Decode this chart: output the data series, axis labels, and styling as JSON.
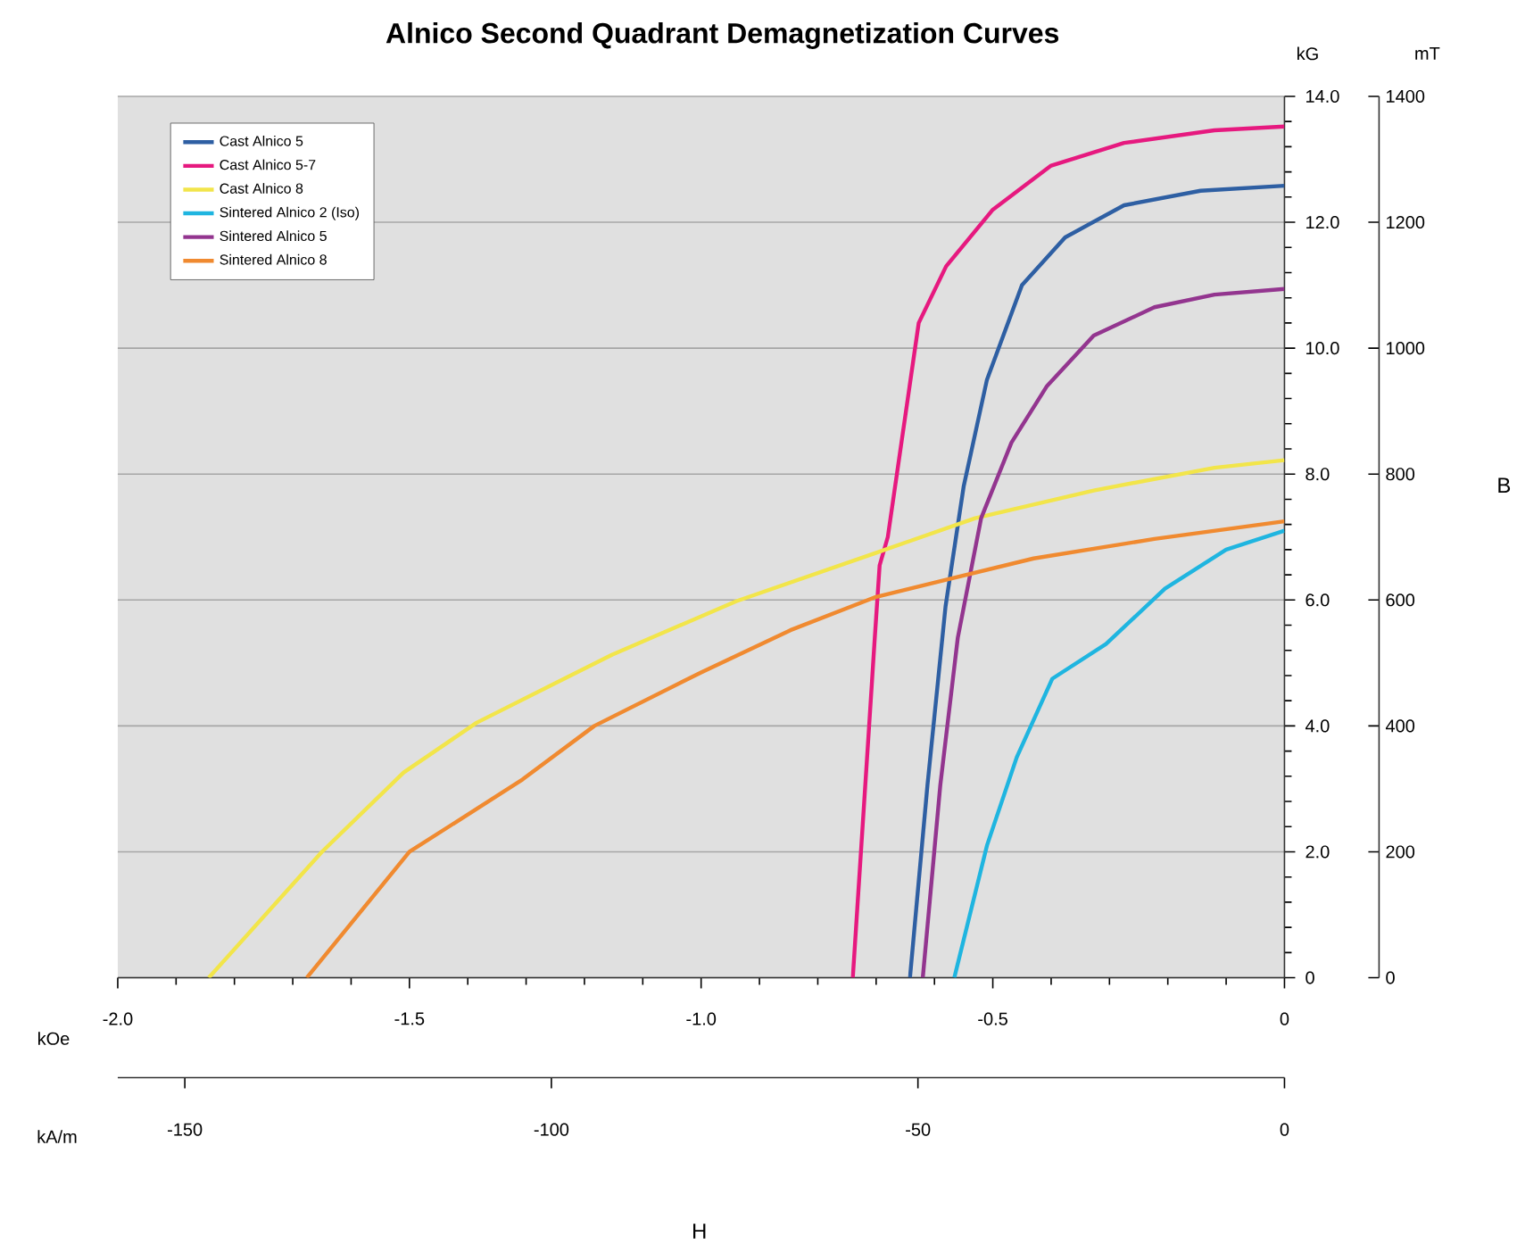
{
  "chart_data": {
    "type": "line",
    "title": "Alnico Second Quadrant Demagnetization Curves",
    "xlabel": "kOe",
    "x2label": "kA/m",
    "ylabel": "kG",
    "y2label": "mT",
    "annotations": [
      "B",
      "H"
    ],
    "xlim": [
      -2,
      0
    ],
    "ylim": [
      0,
      14
    ],
    "y2lim": [
      0,
      1400
    ],
    "x2lim": [
      -159.15,
      0
    ],
    "xticks": [
      {
        "value": -2,
        "label": "-2.0"
      },
      {
        "value": -1.9,
        "label": null
      },
      {
        "value": -1.8,
        "label": null
      },
      {
        "value": -1.7,
        "label": null
      },
      {
        "value": -1.6,
        "label": null
      },
      {
        "value": -1.5,
        "label": "-1.5"
      },
      {
        "value": -1.4,
        "label": null
      },
      {
        "value": -1.3,
        "label": null
      },
      {
        "value": -1.2,
        "label": null
      },
      {
        "value": -1.1,
        "label": null
      },
      {
        "value": -1,
        "label": "-1.0"
      },
      {
        "value": -0.9,
        "label": null
      },
      {
        "value": -0.8,
        "label": null
      },
      {
        "value": -0.7,
        "label": null
      },
      {
        "value": -0.6,
        "label": null
      },
      {
        "value": -0.5,
        "label": "-0.5"
      },
      {
        "value": -0.4,
        "label": null
      },
      {
        "value": -0.3,
        "label": null
      },
      {
        "value": -0.2,
        "label": null
      },
      {
        "value": -0.1,
        "label": null
      },
      0
    ],
    "x2ticks": [
      -150,
      -100,
      -50,
      0
    ],
    "yticks": [
      0,
      {
        "value": 0.4,
        "label": null
      },
      {
        "value": 0.8,
        "label": null
      },
      {
        "value": 1.2,
        "label": null
      },
      {
        "value": 1.6,
        "label": null
      },
      {
        "value": 2,
        "label": "2.0"
      },
      {
        "value": 2.4,
        "label": null
      },
      {
        "value": 2.8,
        "label": null
      },
      {
        "value": 3.2,
        "label": null
      },
      {
        "value": 3.6,
        "label": null
      },
      {
        "value": 4,
        "label": "4.0"
      },
      {
        "value": 4.4,
        "label": null
      },
      {
        "value": 4.8,
        "label": null
      },
      {
        "value": 5.2,
        "label": null
      },
      {
        "value": 5.6,
        "label": null
      },
      {
        "value": 6,
        "label": "6.0"
      },
      {
        "value": 6.4,
        "label": null
      },
      {
        "value": 6.8,
        "label": null
      },
      {
        "value": 7.2,
        "label": null
      },
      {
        "value": 7.6,
        "label": null
      },
      {
        "value": 8,
        "label": "8.0"
      },
      {
        "value": 8.4,
        "label": null
      },
      {
        "value": 8.8,
        "label": null
      },
      {
        "value": 9.2,
        "label": null
      },
      {
        "value": 9.6,
        "label": null
      },
      {
        "value": 10,
        "label": "10.0"
      },
      {
        "value": 10.4,
        "label": null
      },
      {
        "value": 10.8,
        "label": null
      },
      {
        "value": 11.2,
        "label": null
      },
      {
        "value": 11.6,
        "label": null
      },
      {
        "value": 12,
        "label": "12.0"
      },
      {
        "value": 12.4,
        "label": null
      },
      {
        "value": 12.8,
        "label": null
      },
      {
        "value": 13.2,
        "label": null
      },
      {
        "value": 13.6,
        "label": null
      },
      {
        "value": 14,
        "label": "14.0"
      }
    ],
    "y2ticks": [
      0,
      200,
      400,
      600,
      800,
      1000,
      1200,
      1400
    ],
    "grid": "y",
    "legend": "top left",
    "series": [
      {
        "name": "Cast Alnico 5",
        "color": "#2e5fa3",
        "x": [
          -0.642,
          -0.612,
          -0.581,
          -0.55,
          -0.51,
          -0.45,
          -0.376,
          -0.275,
          -0.144,
          0
        ],
        "values": [
          0,
          3.06,
          5.9,
          7.8,
          9.5,
          11.0,
          11.76,
          12.27,
          12.5,
          12.58
        ]
      },
      {
        "name": "Cast Alnico 5-7",
        "color": "#e6197f",
        "x": [
          -0.74,
          -0.712,
          -0.703,
          -0.694,
          -0.68,
          -0.627,
          -0.58,
          -0.5,
          -0.4,
          -0.275,
          -0.12,
          0
        ],
        "values": [
          0,
          4.0,
          5.3,
          6.55,
          7.0,
          10.4,
          11.3,
          12.2,
          12.9,
          13.26,
          13.46,
          13.52
        ]
      },
      {
        "name": "Cast Alnico 8",
        "color": "#f2e54a",
        "x": [
          -1.844,
          -1.65,
          -1.51,
          -1.385,
          -1.153,
          -0.94,
          -0.703,
          -0.53,
          -0.327,
          -0.12,
          0
        ],
        "values": [
          0,
          2.0,
          3.26,
          4.05,
          5.13,
          5.98,
          6.74,
          7.3,
          7.74,
          8.1,
          8.22
        ]
      },
      {
        "name": "Sintered Alnico 2 (Iso)",
        "color": "#1fb5e0",
        "x": [
          -0.566,
          -0.51,
          -0.459,
          -0.398,
          -0.306,
          -0.205,
          -0.1,
          0
        ],
        "values": [
          0,
          2.1,
          3.5,
          4.75,
          5.3,
          6.18,
          6.8,
          7.1
        ]
      },
      {
        "name": "Sintered Alnico 5",
        "color": "#93358f",
        "x": [
          -0.62,
          -0.59,
          -0.56,
          -0.52,
          -0.468,
          -0.407,
          -0.327,
          -0.223,
          -0.12,
          0
        ],
        "values": [
          0,
          3.06,
          5.4,
          7.3,
          8.5,
          9.4,
          10.2,
          10.65,
          10.85,
          10.94
        ]
      },
      {
        "name": "Sintered Alnico 8",
        "color": "#f08a30",
        "x": [
          -1.676,
          -1.5,
          -1.306,
          -1.183,
          -1.0,
          -0.847,
          -0.703,
          -0.58,
          -0.43,
          -0.223,
          0
        ],
        "values": [
          0,
          2.0,
          3.15,
          4.0,
          4.85,
          5.52,
          6.04,
          6.32,
          6.66,
          6.97,
          7.25
        ]
      }
    ]
  }
}
